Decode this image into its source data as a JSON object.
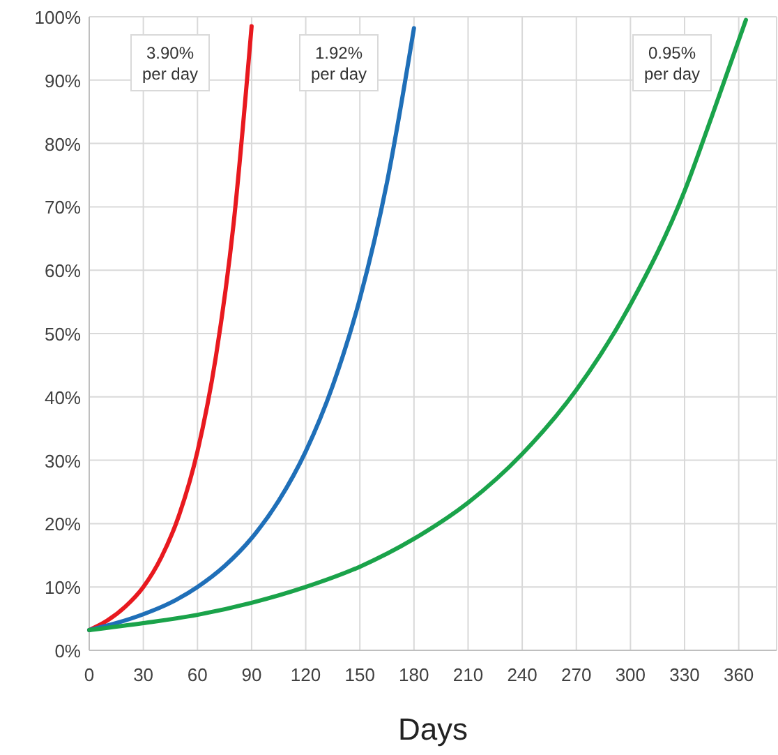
{
  "chart_data": {
    "type": "line",
    "xlabel": "Days",
    "xlim": [
      0,
      381
    ],
    "xticks": [
      0,
      30,
      60,
      90,
      120,
      150,
      180,
      210,
      240,
      270,
      300,
      330,
      360
    ],
    "ylim": [
      0,
      100
    ],
    "yticks": [
      {
        "value": 0,
        "label": "0%"
      },
      {
        "value": 10,
        "label": "10%"
      },
      {
        "value": 20,
        "label": "20%"
      },
      {
        "value": 30,
        "label": "30%"
      },
      {
        "value": 40,
        "label": "40%"
      },
      {
        "value": 50,
        "label": "50%"
      },
      {
        "value": 60,
        "label": "60%"
      },
      {
        "value": 70,
        "label": "70%"
      },
      {
        "value": 80,
        "label": "80%"
      },
      {
        "value": 90,
        "label": "90%"
      },
      {
        "value": 100,
        "label": "100%"
      }
    ],
    "grid": true,
    "line_style": "solid",
    "annotations": [
      "3.90%\nper day",
      "1.92%\nper day",
      "0.95%\nper day"
    ],
    "series": [
      {
        "color": "#e8191f",
        "x": [
          0,
          10,
          20,
          30,
          40,
          50,
          60,
          70,
          80,
          90
        ],
        "values": [
          3.2,
          4.7,
          6.9,
          10,
          14.7,
          21.5,
          31.4,
          46,
          67.3,
          98.5
        ]
      },
      {
        "color": "#1f6fb8",
        "x": [
          0,
          15,
          30,
          45,
          60,
          75,
          90,
          105,
          120,
          135,
          150,
          165,
          180
        ],
        "values": [
          3.2,
          4.3,
          5.7,
          7.5,
          10,
          13.3,
          17.7,
          23.6,
          31.4,
          41.8,
          55.5,
          73.8,
          98.2
        ]
      },
      {
        "color": "#1aa34a",
        "x": [
          0,
          30,
          60,
          90,
          120,
          150,
          180,
          210,
          240,
          270,
          300,
          330,
          345,
          364
        ],
        "values": [
          3.2,
          4.3,
          5.6,
          7.5,
          10,
          13.2,
          17.6,
          23.3,
          31,
          41.1,
          54.6,
          72.5,
          84.2,
          99.5
        ]
      }
    ]
  }
}
